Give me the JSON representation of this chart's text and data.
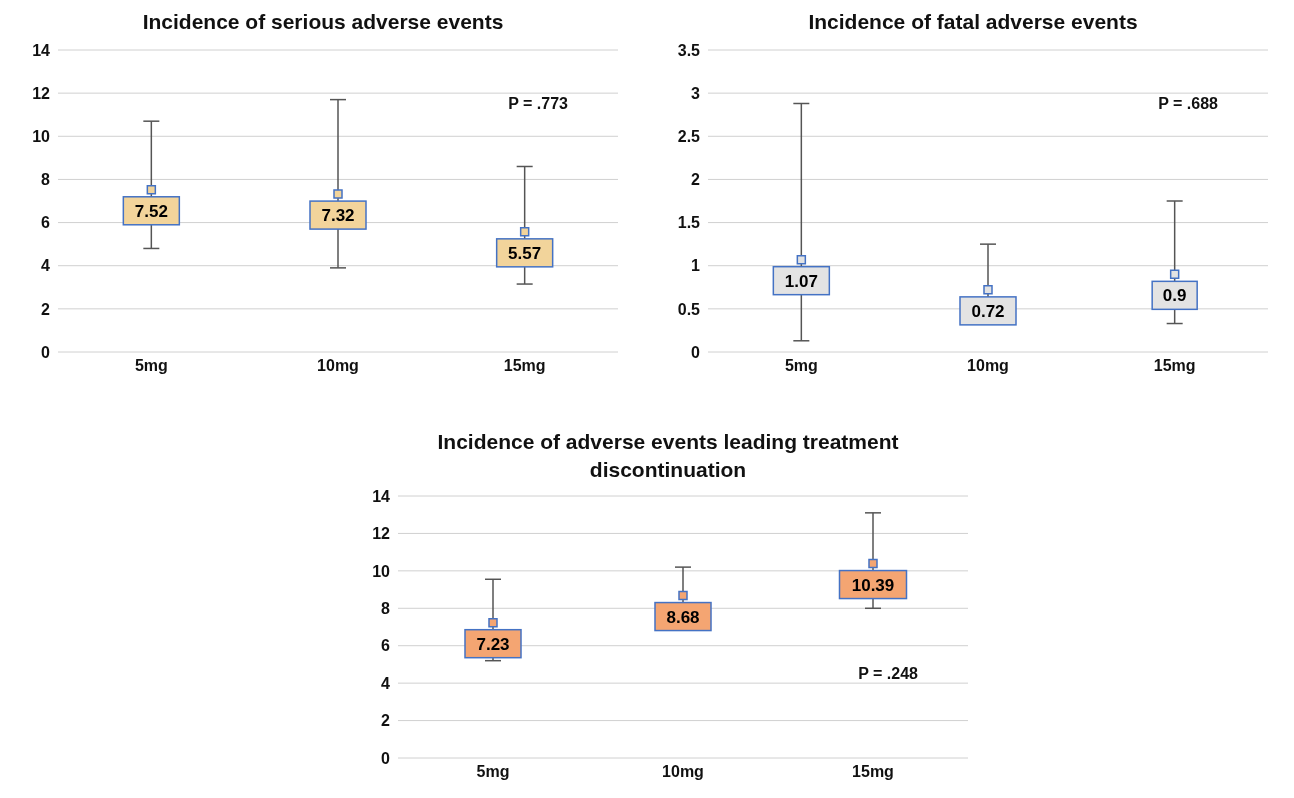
{
  "chart_data": [
    {
      "type": "scatter",
      "title": "Incidence of serious adverse events",
      "categories": [
        "5mg",
        "10mg",
        "15mg"
      ],
      "values": [
        7.52,
        7.32,
        5.57
      ],
      "errors": [
        [
          4.8,
          10.7
        ],
        [
          3.9,
          11.7
        ],
        [
          3.15,
          8.6
        ]
      ],
      "color": "#f2d49b",
      "marker": "square",
      "data_labels": true,
      "ylim": [
        0,
        14
      ],
      "yticks": [
        0,
        2,
        4,
        6,
        8,
        10,
        12,
        14
      ],
      "grid": "y",
      "legend": false,
      "annotations": [
        "P = .773"
      ]
    },
    {
      "type": "scatter",
      "title": "Incidence of fatal adverse events",
      "categories": [
        "5mg",
        "10mg",
        "15mg"
      ],
      "values": [
        1.07,
        0.72,
        0.9
      ],
      "errors": [
        [
          0.13,
          2.88
        ],
        [
          0.35,
          1.25
        ],
        [
          0.33,
          1.75
        ]
      ],
      "color": "#e3e3e3",
      "marker": "square",
      "data_labels": true,
      "ylim": [
        0,
        3.5
      ],
      "yticks": [
        0,
        0.5,
        1,
        1.5,
        2,
        2.5,
        3,
        3.5
      ],
      "grid": "y",
      "legend": false,
      "annotations": [
        "P = .688"
      ]
    },
    {
      "type": "scatter",
      "title": "Incidence of adverse events leading treatment discontinuation",
      "categories": [
        "5mg",
        "10mg",
        "15mg"
      ],
      "values": [
        7.23,
        8.68,
        10.39
      ],
      "errors": [
        [
          5.2,
          9.55
        ],
        [
          7.2,
          10.2
        ],
        [
          8.0,
          13.1
        ]
      ],
      "color": "#f4a572",
      "marker": "square",
      "data_labels": true,
      "ylim": [
        0,
        14
      ],
      "yticks": [
        0,
        2,
        4,
        6,
        8,
        10,
        12,
        14
      ],
      "grid": "y",
      "legend": false,
      "annotations": [
        "P = .248"
      ]
    }
  ]
}
